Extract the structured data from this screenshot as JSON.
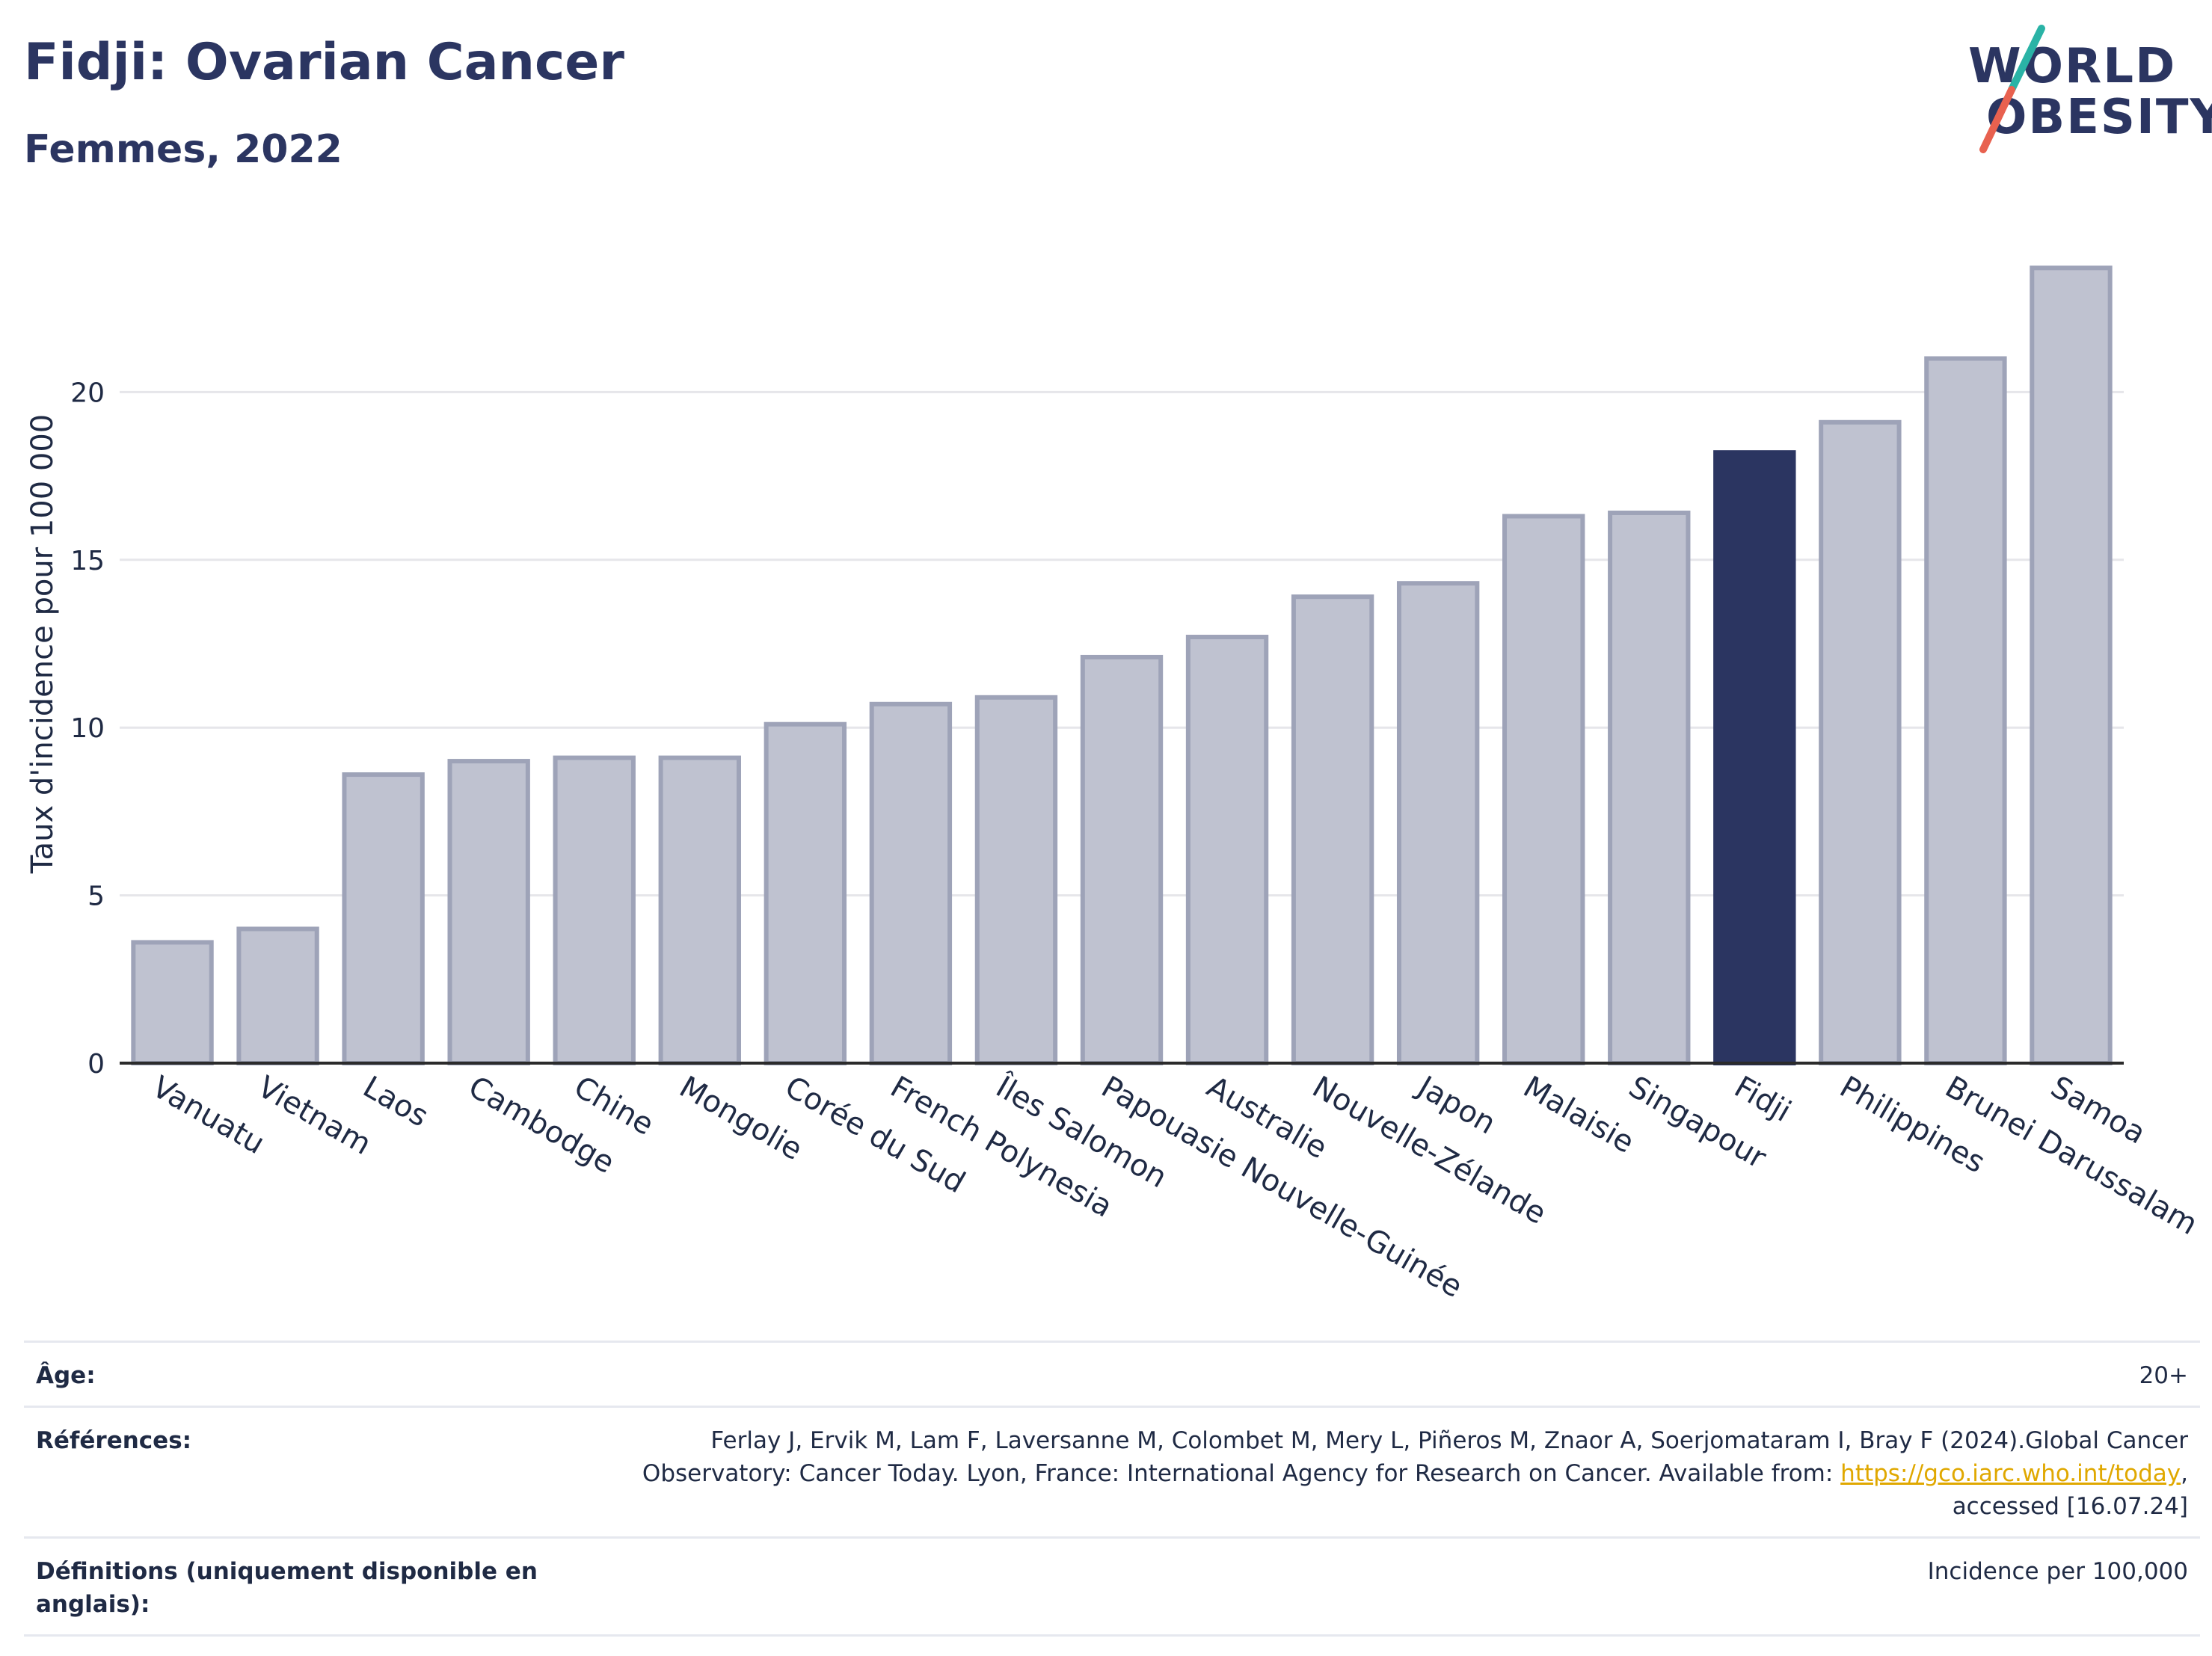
{
  "header": {
    "title": "Fidji: Ovarian Cancer",
    "subtitle": "Femmes, 2022"
  },
  "logo": {
    "line1": "WORLD",
    "line2": "OBESITY"
  },
  "colors": {
    "highlight": "#2b3561",
    "bar": "#bfc2d0",
    "bar_edge": "#9ea3b8",
    "grid": "#e6e6ea"
  },
  "chart_data": {
    "type": "bar",
    "categories": [
      "Vanuatu",
      "Vietnam",
      "Laos",
      "Cambodge",
      "Chine",
      "Mongolie",
      "Corée du Sud",
      "French Polynesia",
      "Îles Salomon",
      "Papouasie Nouvelle-Guinée",
      "Australie",
      "Nouvelle-Zélande",
      "Japon",
      "Malaisie",
      "Singapour",
      "Fidji",
      "Philippines",
      "Brunei Darussalam",
      "Samoa"
    ],
    "values": [
      3.6,
      4.0,
      8.6,
      9.0,
      9.1,
      9.1,
      10.1,
      10.7,
      10.9,
      12.1,
      12.7,
      13.9,
      14.3,
      16.3,
      16.4,
      18.2,
      19.1,
      21.0,
      23.7
    ],
    "highlight": "Fidji",
    "title": "",
    "xlabel": "",
    "ylabel": "Taux d'incidence pour 100 000",
    "ylim": [
      0,
      25
    ],
    "yticks": [
      0,
      5,
      10,
      15,
      20
    ],
    "grid": true,
    "legend": "none"
  },
  "footer": {
    "age_label": "Âge:",
    "age_value": "20+",
    "ref_label": "Références:",
    "ref_text_1": "Ferlay J, Ervik M, Lam F, Laversanne M, Colombet M, Mery L, Piñeros M, Znaor A, Soerjomataram I, Bray F (2024).Global Cancer",
    "ref_text_2": "Observatory: Cancer Today. Lyon, France: International Agency for Research on Cancer. Available from: ",
    "ref_link": "https://gco.iarc.who.int/today",
    "ref_text_3": ",",
    "ref_text_4": "accessed [16.07.24]",
    "def_label": "Définitions (uniquement disponible en anglais):",
    "def_value": "Incidence per 100,000"
  }
}
